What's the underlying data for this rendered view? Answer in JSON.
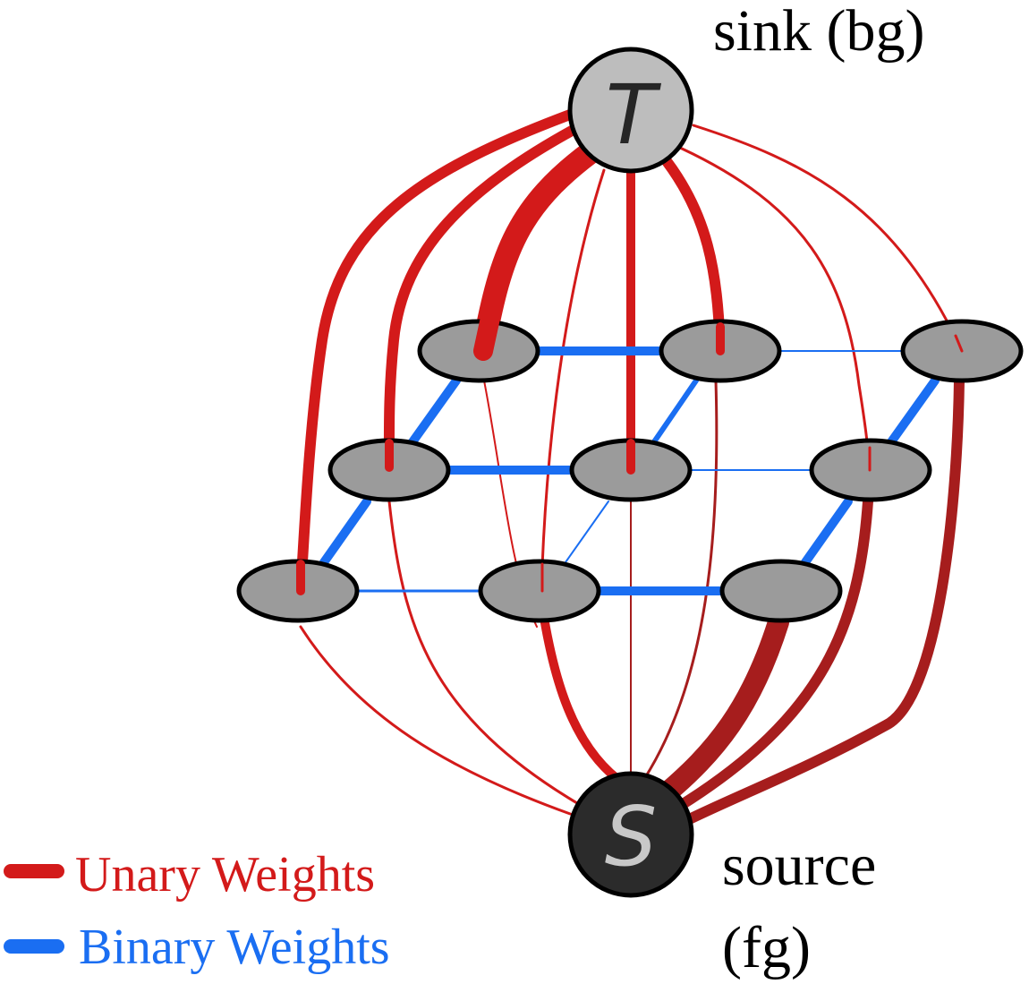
{
  "terminals": {
    "sink": {
      "symbol": "T",
      "caption": "sink (bg)",
      "fill": "#bdbdbd",
      "text_color": "#262626"
    },
    "source": {
      "symbol": "S",
      "caption_line1": "source",
      "caption_line2": "(fg)",
      "fill": "#2b2b2b",
      "text_color": "#c8c8c8"
    }
  },
  "grid": {
    "rows": 3,
    "cols": 3,
    "node_fill": "#9b9b9b"
  },
  "legend": {
    "unary_label": "Unary Weights",
    "unary_color": "#d31a1a",
    "binary_label": "Binary Weights",
    "binary_color": "#1a6ef2"
  },
  "colors": {
    "unary_dark": "#a61d1d",
    "outline": "#000000"
  }
}
